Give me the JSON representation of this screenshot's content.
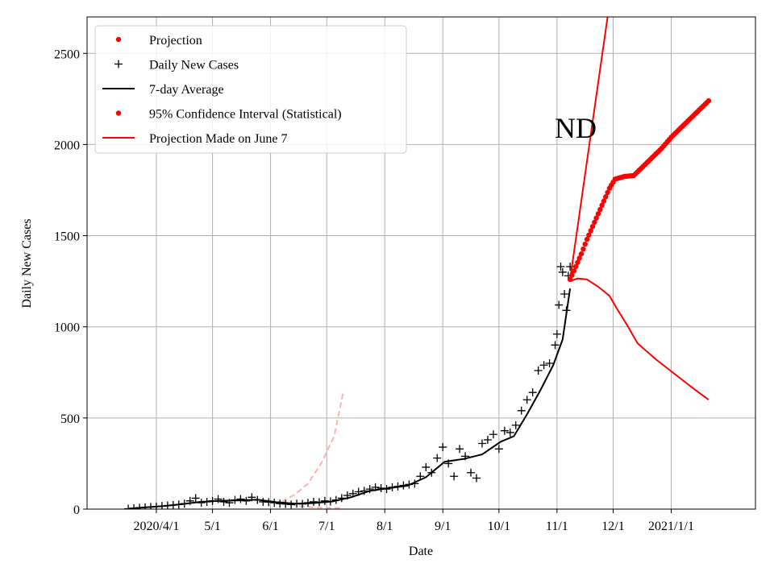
{
  "chart_data": {
    "type": "line",
    "xlabel": "Date",
    "ylabel": "Daily New Cases",
    "xlim": [
      "2020-02-24",
      "2021-02-15"
    ],
    "ylim": [
      0,
      2700
    ],
    "grid": true,
    "x_ticks": [
      {
        "date": "2020-04-01",
        "label": "2020/4/1"
      },
      {
        "date": "2020-05-01",
        "label": "5/1"
      },
      {
        "date": "2020-06-01",
        "label": "6/1"
      },
      {
        "date": "2020-07-01",
        "label": "7/1"
      },
      {
        "date": "2020-08-01",
        "label": "8/1"
      },
      {
        "date": "2020-09-01",
        "label": "9/1"
      },
      {
        "date": "2020-10-01",
        "label": "10/1"
      },
      {
        "date": "2020-11-01",
        "label": "11/1"
      },
      {
        "date": "2020-12-01",
        "label": "12/1"
      },
      {
        "date": "2021-01-01",
        "label": "2021/1/1"
      }
    ],
    "y_ticks": [
      0,
      500,
      1000,
      1500,
      2000,
      2500
    ],
    "annotation": "ND",
    "legend": {
      "location": "top-left",
      "entries": [
        {
          "label": "Projection",
          "marker": "dot",
          "color": "#ff0000"
        },
        {
          "label": "Daily New Cases",
          "marker": "plus",
          "color": "#000000"
        },
        {
          "label": "7-day Average",
          "marker": "line",
          "color": "#000000"
        },
        {
          "label": "95% Confidence Interval (Statistical)",
          "marker": "dot",
          "color": "#ff0000"
        },
        {
          "label": "Projection Made on June 7",
          "marker": "line",
          "color": "#ff0000"
        }
      ]
    },
    "series": [
      {
        "name": "Daily New Cases",
        "style": "plus-markers",
        "color": "#000000",
        "points": [
          [
            "2020-03-17",
            2
          ],
          [
            "2020-03-20",
            5
          ],
          [
            "2020-03-23",
            8
          ],
          [
            "2020-03-26",
            10
          ],
          [
            "2020-03-29",
            12
          ],
          [
            "2020-04-01",
            14
          ],
          [
            "2020-04-04",
            17
          ],
          [
            "2020-04-07",
            20
          ],
          [
            "2020-04-10",
            22
          ],
          [
            "2020-04-13",
            25
          ],
          [
            "2020-04-16",
            30
          ],
          [
            "2020-04-19",
            45
          ],
          [
            "2020-04-22",
            60
          ],
          [
            "2020-04-25",
            35
          ],
          [
            "2020-04-28",
            40
          ],
          [
            "2020-05-01",
            45
          ],
          [
            "2020-05-04",
            55
          ],
          [
            "2020-05-07",
            40
          ],
          [
            "2020-05-10",
            35
          ],
          [
            "2020-05-13",
            50
          ],
          [
            "2020-05-16",
            55
          ],
          [
            "2020-05-19",
            45
          ],
          [
            "2020-05-22",
            65
          ],
          [
            "2020-05-25",
            50
          ],
          [
            "2020-05-28",
            40
          ],
          [
            "2020-05-31",
            38
          ],
          [
            "2020-06-03",
            35
          ],
          [
            "2020-06-06",
            30
          ],
          [
            "2020-06-09",
            28
          ],
          [
            "2020-06-12",
            25
          ],
          [
            "2020-06-15",
            30
          ],
          [
            "2020-06-18",
            28
          ],
          [
            "2020-06-21",
            35
          ],
          [
            "2020-06-24",
            40
          ],
          [
            "2020-06-27",
            38
          ],
          [
            "2020-06-30",
            45
          ],
          [
            "2020-07-03",
            42
          ],
          [
            "2020-07-06",
            50
          ],
          [
            "2020-07-09",
            60
          ],
          [
            "2020-07-12",
            75
          ],
          [
            "2020-07-15",
            85
          ],
          [
            "2020-07-18",
            95
          ],
          [
            "2020-07-21",
            100
          ],
          [
            "2020-07-24",
            110
          ],
          [
            "2020-07-27",
            120
          ],
          [
            "2020-07-30",
            115
          ],
          [
            "2020-08-02",
            110
          ],
          [
            "2020-08-05",
            120
          ],
          [
            "2020-08-08",
            125
          ],
          [
            "2020-08-11",
            130
          ],
          [
            "2020-08-14",
            135
          ],
          [
            "2020-08-17",
            140
          ],
          [
            "2020-08-20",
            180
          ],
          [
            "2020-08-23",
            230
          ],
          [
            "2020-08-26",
            200
          ],
          [
            "2020-08-29",
            280
          ],
          [
            "2020-09-01",
            340
          ],
          [
            "2020-09-04",
            250
          ],
          [
            "2020-09-07",
            180
          ],
          [
            "2020-09-10",
            330
          ],
          [
            "2020-09-13",
            290
          ],
          [
            "2020-09-16",
            200
          ],
          [
            "2020-09-19",
            170
          ],
          [
            "2020-09-22",
            360
          ],
          [
            "2020-09-25",
            380
          ],
          [
            "2020-09-28",
            410
          ],
          [
            "2020-10-01",
            330
          ],
          [
            "2020-10-04",
            430
          ],
          [
            "2020-10-07",
            420
          ],
          [
            "2020-10-10",
            460
          ],
          [
            "2020-10-13",
            540
          ],
          [
            "2020-10-16",
            600
          ],
          [
            "2020-10-19",
            640
          ],
          [
            "2020-10-22",
            760
          ],
          [
            "2020-10-25",
            790
          ],
          [
            "2020-10-28",
            800
          ],
          [
            "2020-10-31",
            900
          ],
          [
            "2020-11-01",
            960
          ],
          [
            "2020-11-02",
            1120
          ],
          [
            "2020-11-03",
            1330
          ],
          [
            "2020-11-04",
            1300
          ],
          [
            "2020-11-05",
            1180
          ],
          [
            "2020-11-06",
            1090
          ],
          [
            "2020-11-07",
            1280
          ],
          [
            "2020-11-08",
            1330
          ]
        ]
      },
      {
        "name": "7-day Average",
        "style": "line",
        "color": "#000000",
        "points": [
          [
            "2020-03-17",
            2
          ],
          [
            "2020-03-25",
            9
          ],
          [
            "2020-04-05",
            17
          ],
          [
            "2020-04-15",
            28
          ],
          [
            "2020-04-25",
            40
          ],
          [
            "2020-05-05",
            45
          ],
          [
            "2020-05-15",
            48
          ],
          [
            "2020-05-25",
            52
          ],
          [
            "2020-06-04",
            38
          ],
          [
            "2020-06-14",
            30
          ],
          [
            "2020-06-24",
            33
          ],
          [
            "2020-07-04",
            42
          ],
          [
            "2020-07-14",
            65
          ],
          [
            "2020-07-24",
            100
          ],
          [
            "2020-08-03",
            115
          ],
          [
            "2020-08-13",
            128
          ],
          [
            "2020-08-23",
            175
          ],
          [
            "2020-09-02",
            260
          ],
          [
            "2020-09-12",
            275
          ],
          [
            "2020-09-22",
            300
          ],
          [
            "2020-10-02",
            370
          ],
          [
            "2020-10-09",
            400
          ],
          [
            "2020-10-16",
            520
          ],
          [
            "2020-10-23",
            650
          ],
          [
            "2020-10-30",
            790
          ],
          [
            "2020-11-04",
            930
          ],
          [
            "2020-11-08",
            1210
          ]
        ]
      },
      {
        "name": "Projection",
        "style": "red-dots",
        "color": "#ff0000",
        "points": [
          [
            "2020-11-08",
            1260
          ],
          [
            "2020-11-11",
            1330
          ],
          [
            "2020-11-14",
            1400
          ],
          [
            "2020-11-17",
            1480
          ],
          [
            "2020-11-20",
            1550
          ],
          [
            "2020-11-23",
            1620
          ],
          [
            "2020-11-26",
            1690
          ],
          [
            "2020-11-29",
            1760
          ],
          [
            "2020-12-02",
            1810
          ],
          [
            "2020-12-07",
            1825
          ],
          [
            "2020-12-12",
            1830
          ],
          [
            "2020-12-17",
            1880
          ],
          [
            "2020-12-22",
            1930
          ],
          [
            "2020-12-27",
            1980
          ],
          [
            "2021-01-01",
            2040
          ],
          [
            "2021-01-06",
            2090
          ],
          [
            "2021-01-11",
            2140
          ],
          [
            "2021-01-16",
            2190
          ],
          [
            "2021-01-21",
            2240
          ]
        ]
      },
      {
        "name": "95% Confidence Interval (Statistical)",
        "style": "red-line-upper",
        "color": "#ff0000",
        "points": [
          [
            "2020-11-08",
            1260
          ],
          [
            "2020-11-28",
            2700
          ]
        ]
      },
      {
        "name": "95% Confidence Interval (Statistical)",
        "style": "red-line-lower",
        "color": "#ff0000",
        "points": [
          [
            "2020-11-08",
            1250
          ],
          [
            "2020-11-12",
            1265
          ],
          [
            "2020-11-17",
            1260
          ],
          [
            "2020-11-23",
            1220
          ],
          [
            "2020-11-29",
            1170
          ],
          [
            "2020-12-03",
            1100
          ],
          [
            "2020-12-09",
            1000
          ],
          [
            "2020-12-14",
            910
          ],
          [
            "2020-12-24",
            820
          ],
          [
            "2021-01-03",
            740
          ],
          [
            "2021-01-13",
            660
          ],
          [
            "2021-01-21",
            600
          ]
        ]
      },
      {
        "name": "Projection Made on June 7",
        "style": "dashed-pink",
        "color": "#ffb0b0",
        "points": [
          [
            "2020-06-07",
            40
          ],
          [
            "2020-06-14",
            80
          ],
          [
            "2020-06-21",
            140
          ],
          [
            "2020-06-28",
            250
          ],
          [
            "2020-07-05",
            400
          ],
          [
            "2020-07-10",
            650
          ]
        ]
      },
      {
        "name": "Projection Made on June 7",
        "style": "dashed-pink-lower",
        "color": "#ffb0b0",
        "points": [
          [
            "2020-06-07",
            38
          ],
          [
            "2020-06-17",
            15
          ],
          [
            "2020-06-27",
            8
          ],
          [
            "2020-07-10",
            5
          ]
        ]
      }
    ]
  }
}
